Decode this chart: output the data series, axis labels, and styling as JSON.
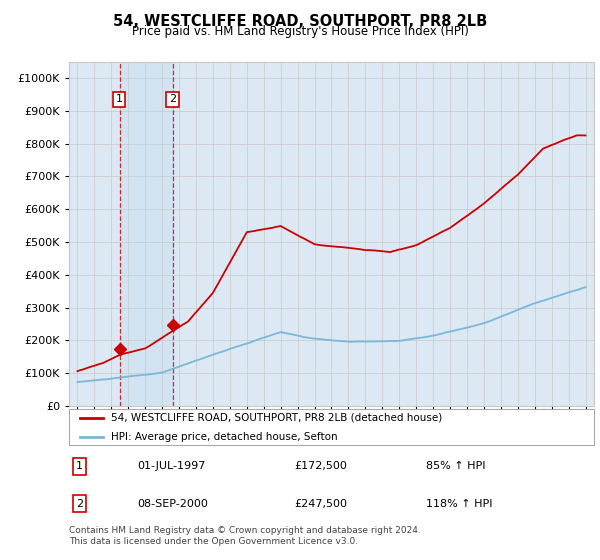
{
  "title": "54, WESTCLIFFE ROAD, SOUTHPORT, PR8 2LB",
  "subtitle": "Price paid vs. HM Land Registry's House Price Index (HPI)",
  "sale1_price": 172500,
  "sale1_label": "01-JUL-1997",
  "sale1_pct": "85%",
  "sale2_price": 247500,
  "sale2_label": "08-SEP-2000",
  "sale2_pct": "118%",
  "legend_line1": "54, WESTCLIFFE ROAD, SOUTHPORT, PR8 2LB (detached house)",
  "legend_line2": "HPI: Average price, detached house, Sefton",
  "footnote": "Contains HM Land Registry data © Crown copyright and database right 2024.\nThis data is licensed under the Open Government Licence v3.0.",
  "hpi_color": "#7ab8d9",
  "sale_color": "#cc0000",
  "bg_color": "#dce9f5",
  "plot_bg": "#ffffff",
  "grid_color": "#c8c8c8",
  "sale1_x": 1997.5,
  "sale2_x": 2000.667,
  "xmin": 1994.5,
  "xmax": 2025.5,
  "ylim_max": 1050000,
  "ylim_min": 0
}
